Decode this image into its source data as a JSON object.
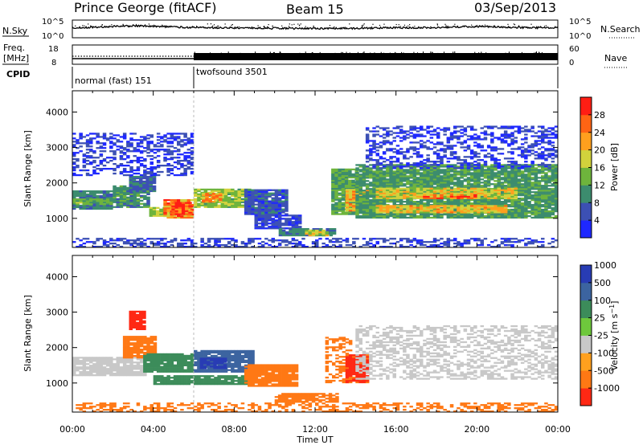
{
  "header": {
    "station": "Prince George (fitACF)",
    "beam": "Beam 15",
    "date": "03/Sep/2013"
  },
  "summary_panels": {
    "noise": {
      "left_label": "N.Sky",
      "right_label": "N.Search",
      "right_label_style": "dotted",
      "ticks": [
        "10^5",
        "10^0"
      ]
    },
    "freq": {
      "left_label_top": "Freq.",
      "left_label_bottom": "[MHz]",
      "left_ticks": [
        "18",
        "8"
      ],
      "right_label": "Nave",
      "right_label_style": "dotted",
      "right_ticks": [
        "60",
        "0"
      ]
    },
    "cpid": {
      "label": "CPID",
      "segments": [
        {
          "name": "normal (fast) 151",
          "start_hour": 0,
          "end_hour": 6.0
        },
        {
          "name": "twofsound 3501",
          "start_hour": 6.0,
          "end_hour": 24
        }
      ]
    }
  },
  "chart_data": [
    {
      "type": "heatmap",
      "name": "Power",
      "ylabel": "Slant Range [km]",
      "xlim": [
        0,
        24
      ],
      "ylim": [
        180,
        4600
      ],
      "yticks": [
        1000,
        2000,
        3000,
        4000
      ],
      "colorbar_label": "Power [dB]",
      "colorbar_ticks": [
        4,
        8,
        12,
        16,
        20,
        24,
        28
      ],
      "colorbar_range": [
        0,
        30
      ],
      "colors": [
        "#1e28ff",
        "#3c50b4",
        "#3c8c6e",
        "#6eb43c",
        "#d2d23c",
        "#ffa01e",
        "#ff6414",
        "#ff1e14"
      ],
      "regions": [
        {
          "t": [
            0.0,
            2.0
          ],
          "r": [
            1250,
            1750
          ],
          "v": 9
        },
        {
          "t": [
            0.0,
            2.0
          ],
          "r": [
            1380,
            1550
          ],
          "v": 13
        },
        {
          "t": [
            2.0,
            3.8
          ],
          "r": [
            1300,
            1900
          ],
          "v": 10
        },
        {
          "t": [
            2.8,
            4.0
          ],
          "r": [
            1750,
            2200
          ],
          "v": 7
        },
        {
          "t": [
            3.8,
            5.0
          ],
          "r": [
            1050,
            1300
          ],
          "v": 16
        },
        {
          "t": [
            4.5,
            6.0
          ],
          "r": [
            1000,
            1500
          ],
          "v": 24
        },
        {
          "t": [
            4.9,
            5.9
          ],
          "r": [
            1100,
            1450
          ],
          "v": 28
        },
        {
          "t": [
            6.0,
            8.8
          ],
          "r": [
            1300,
            1800
          ],
          "v": 15
        },
        {
          "t": [
            6.4,
            7.4
          ],
          "r": [
            1450,
            1700
          ],
          "v": 22
        },
        {
          "t": [
            8.5,
            10.5
          ],
          "r": [
            1100,
            1800
          ],
          "v": 6
        },
        {
          "t": [
            9.0,
            11.2
          ],
          "r": [
            700,
            1100
          ],
          "v": 5
        },
        {
          "t": [
            10.2,
            13.0
          ],
          "r": [
            500,
            700
          ],
          "v": 9
        },
        {
          "t": [
            11.5,
            12.5
          ],
          "r": [
            500,
            650
          ],
          "v": 17
        },
        {
          "t": [
            12.8,
            14.0
          ],
          "r": [
            1100,
            2400
          ],
          "v": 12
        },
        {
          "t": [
            13.5,
            14.5
          ],
          "r": [
            1200,
            1800
          ],
          "v": 21
        },
        {
          "t": [
            14.0,
            24.0
          ],
          "r": [
            1000,
            2500
          ],
          "v": 11
        },
        {
          "t": [
            15.0,
            21.5
          ],
          "r": [
            1150,
            1350
          ],
          "v": 20
        },
        {
          "t": [
            15.0,
            22.0
          ],
          "r": [
            1550,
            1850
          ],
          "v": 18
        },
        {
          "t": [
            17.0,
            20.0
          ],
          "r": [
            1550,
            1650
          ],
          "v": 24
        },
        {
          "t": [
            0.0,
            24.0
          ],
          "r": [
            180,
            420
          ],
          "v": 5
        },
        {
          "t": [
            0.0,
            6.0
          ],
          "r": [
            2200,
            3400
          ],
          "v": 4
        },
        {
          "t": [
            14.5,
            24.0
          ],
          "r": [
            2400,
            3600
          ],
          "v": 4
        }
      ]
    },
    {
      "type": "heatmap",
      "name": "Velocity",
      "ylabel": "Slant Range [km]",
      "xlim": [
        0,
        24
      ],
      "ylim": [
        180,
        4600
      ],
      "yticks": [
        1000,
        2000,
        3000,
        4000
      ],
      "xticks": [
        "00:00",
        "04:00",
        "08:00",
        "12:00",
        "16:00",
        "20:00",
        "00:00"
      ],
      "xlabel": "Time UT",
      "colorbar_label": "Velocity [m s^-1]",
      "colorbar_ticks": [
        "1000",
        "500",
        "100",
        "25",
        "-25",
        "-100",
        "-500",
        "-1000"
      ],
      "colors": [
        "#283cb4",
        "#3c64a0",
        "#3c8c5a",
        "#6ec83c",
        "#c8c8c8",
        "#ffa01e",
        "#ff7814",
        "#ff2814"
      ],
      "regions": [
        {
          "t": [
            0.0,
            3.5
          ],
          "r": [
            1200,
            1700
          ],
          "v": 0
        },
        {
          "t": [
            2.5,
            4.0
          ],
          "r": [
            1700,
            2300
          ],
          "v": -150
        },
        {
          "t": [
            3.5,
            6.0
          ],
          "r": [
            1300,
            1800
          ],
          "v": 60
        },
        {
          "t": [
            4.0,
            6.0
          ],
          "r": [
            950,
            1200
          ],
          "v": 60
        },
        {
          "t": [
            6.0,
            9.0
          ],
          "r": [
            1300,
            1900
          ],
          "v": 300
        },
        {
          "t": [
            6.3,
            7.5
          ],
          "r": [
            1400,
            1700
          ],
          "v": 700
        },
        {
          "t": [
            6.0,
            9.0
          ],
          "r": [
            950,
            1200
          ],
          "v": 60
        },
        {
          "t": [
            8.5,
            11.0
          ],
          "r": [
            900,
            1500
          ],
          "v": -300
        },
        {
          "t": [
            10.0,
            13.0
          ],
          "r": [
            450,
            700
          ],
          "v": -300
        },
        {
          "t": [
            12.5,
            13.8
          ],
          "r": [
            1000,
            2300
          ],
          "v": -150
        },
        {
          "t": [
            13.5,
            14.5
          ],
          "r": [
            1000,
            1800
          ],
          "v": -600
        },
        {
          "t": [
            14.0,
            24.0
          ],
          "r": [
            1100,
            2600
          ],
          "v": 0
        },
        {
          "t": [
            0.0,
            24.0
          ],
          "r": [
            180,
            420
          ],
          "v": -150
        },
        {
          "t": [
            2.8,
            3.6
          ],
          "r": [
            2500,
            3000
          ],
          "v": -700
        }
      ]
    }
  ]
}
